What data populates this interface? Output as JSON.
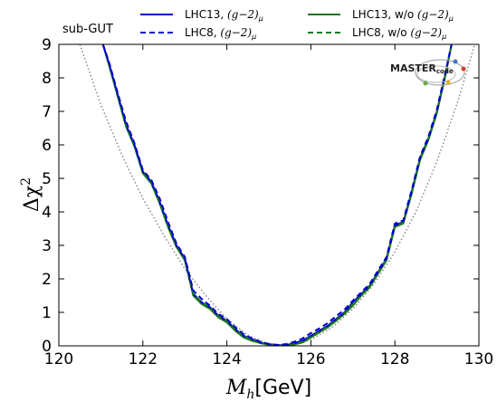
{
  "chart_data": {
    "type": "line",
    "annotation": "sub-GUT",
    "xlabel": {
      "main": "M",
      "sub": "h",
      "unit": "[GeV]"
    },
    "ylabel": {
      "main": "Δχ",
      "sup": "2"
    },
    "xlim": [
      120,
      130
    ],
    "ylim": [
      0,
      9
    ],
    "x_ticks": [
      "120",
      "122",
      "124",
      "126",
      "128",
      "130"
    ],
    "y_ticks": [
      "0",
      "1",
      "2",
      "3",
      "4",
      "5",
      "6",
      "7",
      "8",
      "9"
    ],
    "grid": false,
    "legend_position": "top",
    "logo_text": "MASTERcode",
    "reference_curve": {
      "style": "dotted",
      "color": "#808080",
      "x": [
        120.5,
        121.0,
        121.5,
        122.0,
        122.5,
        123.0,
        123.5,
        124.0,
        124.5,
        125.0,
        125.3,
        125.6,
        126.0,
        126.5,
        127.0,
        127.5,
        128.0,
        128.5,
        129.0,
        129.5,
        129.9
      ],
      "y": [
        9.0,
        7.2,
        5.7,
        4.4,
        3.3,
        2.3,
        1.5,
        0.8,
        0.32,
        0.05,
        0.0,
        0.03,
        0.18,
        0.55,
        1.1,
        1.85,
        2.8,
        4.0,
        5.5,
        7.3,
        9.0
      ]
    },
    "series": [
      {
        "name": "LHC13, (g−2)_μ",
        "legend_main": "LHC13, ",
        "legend_math": "(g−2)",
        "legend_sub": "μ",
        "color": "#0000cc",
        "style": "solid",
        "x": [
          121.05,
          121.2,
          121.4,
          121.6,
          121.8,
          122.0,
          122.2,
          122.4,
          122.6,
          122.8,
          123.0,
          123.2,
          123.4,
          123.6,
          123.8,
          124.0,
          124.2,
          124.4,
          124.6,
          124.8,
          125.0,
          125.2,
          125.4,
          125.6,
          125.8,
          126.0,
          126.2,
          126.4,
          126.6,
          126.8,
          127.0,
          127.2,
          127.4,
          127.6,
          127.8,
          128.0,
          128.2,
          128.4,
          128.6,
          128.8,
          129.0,
          129.2,
          129.35
        ],
        "y": [
          9.0,
          8.4,
          7.5,
          6.6,
          6.0,
          5.2,
          4.9,
          4.3,
          3.6,
          3.0,
          2.6,
          1.55,
          1.3,
          1.15,
          0.9,
          0.75,
          0.5,
          0.3,
          0.2,
          0.1,
          0.05,
          0.02,
          0.02,
          0.08,
          0.15,
          0.3,
          0.45,
          0.6,
          0.8,
          1.0,
          1.3,
          1.55,
          1.8,
          2.2,
          2.6,
          3.6,
          3.7,
          4.6,
          5.6,
          6.2,
          7.0,
          8.1,
          9.0
        ]
      },
      {
        "name": "LHC8, (g−2)_μ",
        "legend_main": "LHC8, ",
        "legend_math": "(g−2)",
        "legend_sub": "μ",
        "color": "#0000cc",
        "style": "dashed",
        "x": [
          121.05,
          121.2,
          121.4,
          121.6,
          121.8,
          122.0,
          122.2,
          122.4,
          122.6,
          122.8,
          123.0,
          123.2,
          123.4,
          123.6,
          123.8,
          124.0,
          124.2,
          124.4,
          124.6,
          124.8,
          125.0,
          125.2,
          125.4,
          125.6,
          125.8,
          126.0,
          126.2,
          126.4,
          126.6,
          126.8,
          127.0,
          127.2,
          127.4,
          127.6,
          127.8,
          128.0,
          128.2,
          128.4,
          128.6,
          128.8,
          129.0,
          129.2,
          129.35
        ],
        "y": [
          9.0,
          8.45,
          7.55,
          6.7,
          6.05,
          5.25,
          4.95,
          4.4,
          3.7,
          3.05,
          2.65,
          1.65,
          1.4,
          1.2,
          0.95,
          0.8,
          0.55,
          0.35,
          0.22,
          0.12,
          0.06,
          0.03,
          0.05,
          0.12,
          0.22,
          0.38,
          0.52,
          0.68,
          0.88,
          1.08,
          1.35,
          1.6,
          1.85,
          2.25,
          2.65,
          3.65,
          3.75,
          4.65,
          5.65,
          6.25,
          7.05,
          8.15,
          9.0
        ]
      },
      {
        "name": "LHC13, w/o (g−2)_μ",
        "legend_main": "LHC13, w/o ",
        "legend_math": "(g−2)",
        "legend_sub": "μ",
        "color": "#1a7a1a",
        "style": "solid",
        "x": [
          121.05,
          121.2,
          121.4,
          121.6,
          121.8,
          122.0,
          122.2,
          122.4,
          122.6,
          122.8,
          123.0,
          123.2,
          123.4,
          123.6,
          123.8,
          124.0,
          124.2,
          124.4,
          124.6,
          124.8,
          125.0,
          125.2,
          125.4,
          125.6,
          125.8,
          126.0,
          126.2,
          126.4,
          126.6,
          126.8,
          127.0,
          127.2,
          127.4,
          127.6,
          127.8,
          128.0,
          128.2,
          128.4,
          128.6,
          128.8,
          129.0,
          129.2,
          129.35
        ],
        "y": [
          9.0,
          8.35,
          7.45,
          6.55,
          5.95,
          5.15,
          4.85,
          4.25,
          3.55,
          2.95,
          2.55,
          1.5,
          1.25,
          1.1,
          0.85,
          0.7,
          0.45,
          0.25,
          0.15,
          0.08,
          0.03,
          0.01,
          0.0,
          0.04,
          0.1,
          0.25,
          0.4,
          0.55,
          0.75,
          0.95,
          1.2,
          1.5,
          1.75,
          2.15,
          2.55,
          3.55,
          3.65,
          4.55,
          5.55,
          6.15,
          6.95,
          8.05,
          9.0
        ]
      },
      {
        "name": "LHC8, w/o (g−2)_μ",
        "legend_main": "LHC8, w/o ",
        "legend_math": "(g−2)",
        "legend_sub": "μ",
        "color": "#1a7a1a",
        "style": "dashed",
        "x": [
          121.05,
          121.2,
          121.4,
          121.6,
          121.8,
          122.0,
          122.2,
          122.4,
          122.6,
          122.8,
          123.0,
          123.2,
          123.4,
          123.6,
          123.8,
          124.0,
          124.2,
          124.4,
          124.6,
          124.8,
          125.0,
          125.2,
          125.4,
          125.6,
          125.8,
          126.0,
          126.2,
          126.4,
          126.6,
          126.8,
          127.0,
          127.2,
          127.4,
          127.6,
          127.8,
          128.0,
          128.2,
          128.4,
          128.6,
          128.8,
          129.0,
          129.2,
          129.35
        ],
        "y": [
          9.0,
          8.4,
          7.5,
          6.6,
          6.0,
          5.2,
          4.9,
          4.3,
          3.6,
          3.0,
          2.6,
          1.55,
          1.3,
          1.15,
          0.9,
          0.75,
          0.5,
          0.3,
          0.18,
          0.09,
          0.04,
          0.01,
          0.01,
          0.05,
          0.12,
          0.27,
          0.42,
          0.57,
          0.77,
          0.97,
          1.25,
          1.52,
          1.78,
          2.18,
          2.58,
          3.58,
          3.68,
          4.58,
          5.58,
          6.18,
          6.98,
          8.08,
          9.0
        ]
      }
    ]
  }
}
